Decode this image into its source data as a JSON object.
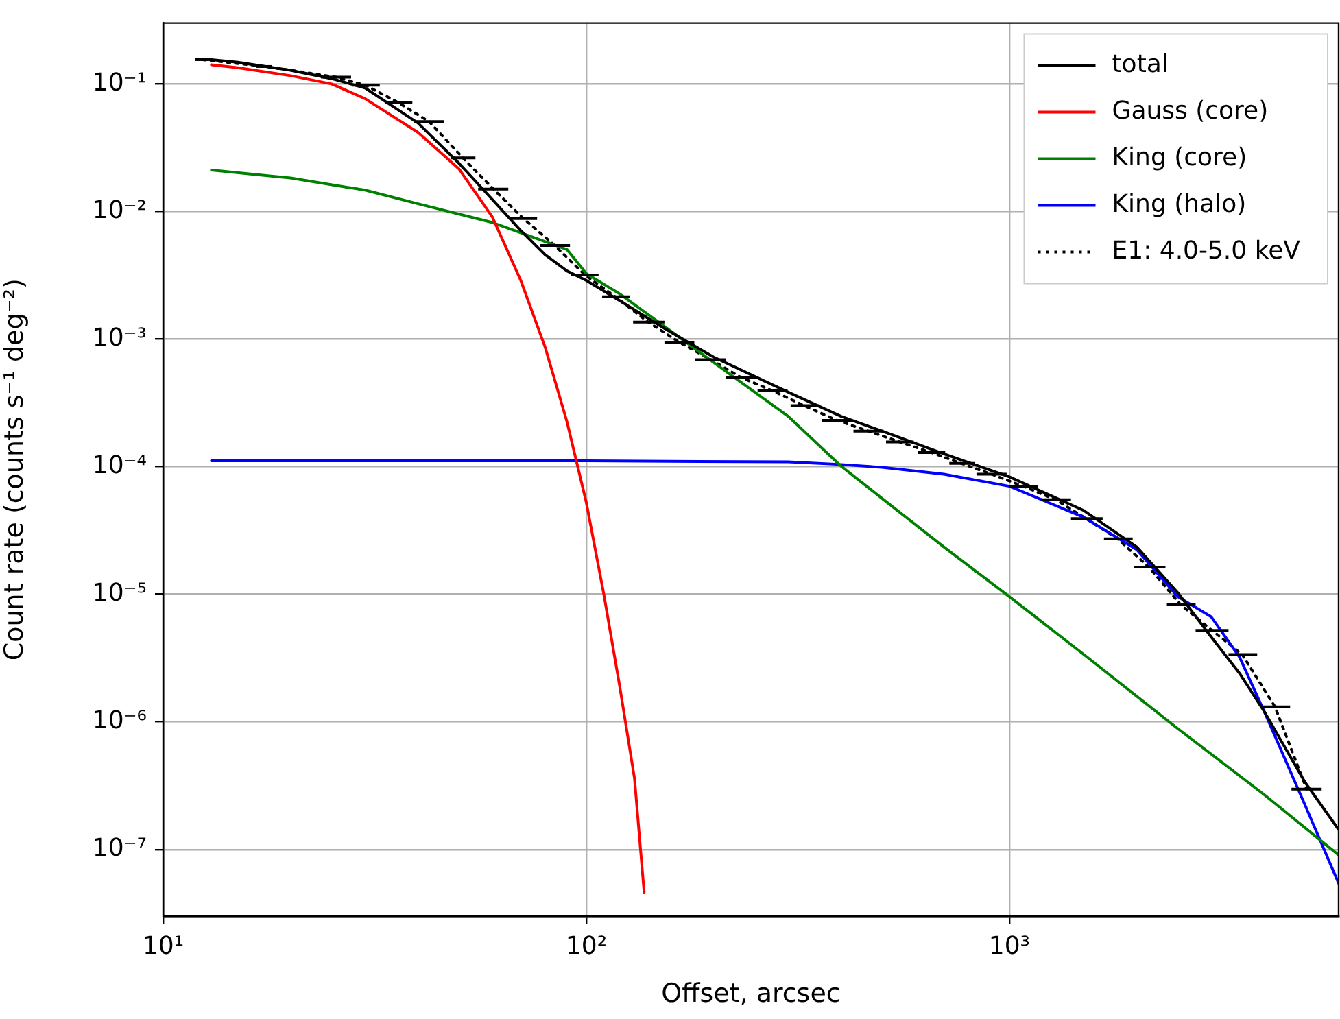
{
  "chart_data": {
    "type": "line",
    "xlabel": "Offset, arcsec",
    "ylabel": "Count rate (counts s⁻¹ deg⁻²)",
    "log": "xy",
    "grid": true,
    "legend": "top right",
    "marker": "none",
    "xlim": [
      10,
      6000
    ],
    "ylim": [
      3e-08,
      0.3
    ],
    "xticks": [
      {
        "value": 10,
        "label": "10¹"
      },
      {
        "value": 100,
        "label": "10²"
      },
      {
        "value": 1000,
        "label": "10³"
      }
    ],
    "yticks": [
      {
        "value": 1e-07,
        "label": "10⁻⁷"
      },
      {
        "value": 1e-06,
        "label": "10⁻⁶"
      },
      {
        "value": 1e-05,
        "label": "10⁻⁵"
      },
      {
        "value": 0.0001,
        "label": "10⁻⁴"
      },
      {
        "value": 0.001,
        "label": "10⁻³"
      },
      {
        "value": 0.01,
        "label": "10⁻²"
      },
      {
        "value": 0.1,
        "label": "10⁻¹"
      }
    ],
    "series": [
      {
        "name": "total",
        "color": "#000000",
        "x": [
          13,
          15,
          20,
          25,
          30,
          40,
          50,
          60,
          70,
          80,
          90,
          100,
          120,
          150,
          200,
          300,
          400,
          500,
          700,
          1000,
          1500,
          2000,
          2500,
          3000,
          3500,
          4000,
          5000,
          6000
        ],
        "values": [
          0.155,
          0.148,
          0.128,
          0.11,
          0.093,
          0.0494,
          0.0239,
          0.0124,
          0.00708,
          0.00457,
          0.00342,
          0.00288,
          0.002,
          0.00126,
          0.000722,
          0.000384,
          0.000248,
          0.00019,
          0.000126,
          8.32e-05,
          4.53e-05,
          2.35e-05,
          1.03e-05,
          4.62e-06,
          2.4e-06,
          1.21e-06,
          3.35e-07,
          1.43e-07
        ]
      },
      {
        "name": "Gauss (core)",
        "color": "#ff0000",
        "x": [
          13,
          15,
          20,
          25,
          30,
          40,
          50,
          60,
          70,
          80,
          90,
          100,
          110,
          120,
          130,
          137
        ],
        "values": [
          0.141,
          0.134,
          0.116,
          0.1,
          0.0766,
          0.0417,
          0.0216,
          0.00904,
          0.00288,
          0.000855,
          0.000225,
          5.24e-05,
          1e-05,
          1.88e-06,
          3.6e-07,
          4.6e-08
        ]
      },
      {
        "name": "King (core)",
        "color": "#008000",
        "x": [
          13,
          20,
          30,
          40,
          60,
          90,
          100,
          120,
          150,
          200,
          300,
          400,
          500,
          700,
          1000,
          1500,
          2500,
          4000,
          6000
        ],
        "values": [
          0.0211,
          0.0183,
          0.0147,
          0.0115,
          0.00819,
          0.00504,
          0.00326,
          0.00226,
          0.00132,
          0.000655,
          0.000248,
          0.000101,
          5.64e-05,
          2.35e-05,
          9.57e-06,
          3.37e-06,
          8.85e-07,
          2.69e-07,
          9.04e-08
        ]
      },
      {
        "name": "King (halo)",
        "color": "#0000ff",
        "x": [
          13,
          100,
          300,
          400,
          500,
          700,
          1000,
          1500,
          2000,
          2500,
          3000,
          3500,
          4000,
          5000,
          6000
        ],
        "values": [
          0.000111,
          0.000111,
          0.000109,
          0.000104,
          9.87e-05,
          8.73e-05,
          7.02e-05,
          4.01e-05,
          2.24e-05,
          9.57e-06,
          6.65e-06,
          3.21e-06,
          1.21e-06,
          2.22e-07,
          5.42e-08
        ]
      },
      {
        "name": "E1: 4.0-5.0 keV",
        "color": "#000000",
        "line_style": "dotted",
        "x": [
          12.4,
          17.4,
          25.6,
          30.1,
          36,
          42.5,
          51.1,
          60.3,
          71,
          84.2,
          99.3,
          117,
          140,
          166,
          197,
          232,
          276,
          327,
          391,
          464,
          551,
          654,
          770,
          908,
          1078,
          1288,
          1518,
          1802,
          2138,
          2539,
          3013,
          3550,
          4245,
          5040
        ],
        "values": [
          0.155,
          0.137,
          0.113,
          0.0976,
          0.0711,
          0.0507,
          0.0263,
          0.015,
          0.00881,
          0.00542,
          0.00318,
          0.00215,
          0.00136,
          0.000944,
          0.000689,
          0.000501,
          0.000393,
          0.000301,
          0.000231,
          0.00019,
          0.000156,
          0.000129,
          0.000106,
          8.73e-05,
          7.02e-05,
          5.5e-05,
          3.92e-05,
          2.72e-05,
          1.63e-05,
          8.28e-06,
          5.21e-06,
          3.37e-06,
          1.31e-06,
          2.97e-07
        ],
        "xerrors": [
          [
            11.9,
            13
          ],
          [
            16.6,
            18.1
          ],
          [
            23.6,
            27.8
          ],
          [
            28,
            32.5
          ],
          [
            33.4,
            38.8
          ],
          [
            39.1,
            46.1
          ],
          [
            47.8,
            54.7
          ],
          [
            55.5,
            65.4
          ],
          [
            65.9,
            76.5
          ],
          [
            77.6,
            91.5
          ],
          [
            92.1,
            106.9
          ],
          [
            109,
            127
          ],
          [
            129,
            153
          ],
          [
            153,
            180
          ],
          [
            181,
            214
          ],
          [
            214,
            252
          ],
          [
            254,
            299
          ],
          [
            304,
            355
          ],
          [
            360,
            425
          ],
          [
            428,
            504
          ],
          [
            511,
            594
          ],
          [
            607,
            705
          ],
          [
            721,
            830
          ],
          [
            836,
            985
          ],
          [
            1000,
            1170
          ],
          [
            1187,
            1398
          ],
          [
            1398,
            1661
          ],
          [
            1673,
            1956
          ],
          [
            1970,
            2338
          ],
          [
            2356,
            2755
          ],
          [
            2755,
            3295
          ],
          [
            3295,
            3852
          ],
          [
            3910,
            4608
          ],
          [
            4642,
            5470
          ]
        ]
      }
    ]
  }
}
